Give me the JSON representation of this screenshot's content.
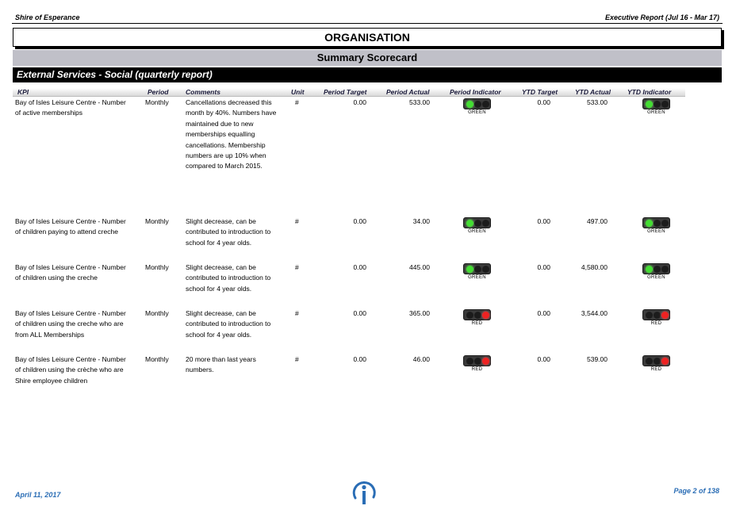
{
  "header": {
    "org_name": "Shire of Esperance",
    "report_title": "Executive Report (Jul 16 - Mar 17)"
  },
  "titles": {
    "organisation": "ORGANISATION",
    "summary": "Summary Scorecard",
    "section": "External Services - Social (quarterly report)"
  },
  "columns": {
    "kpi": "KPI",
    "period": "Period",
    "comments": "Comments",
    "unit": "Unit",
    "period_target": "Period Target",
    "period_actual": "Period Actual",
    "period_indicator": "Period Indicator",
    "ytd_target": "YTD Target",
    "ytd_actual": "YTD Actual",
    "ytd_indicator": "YTD Indicator"
  },
  "rows": [
    {
      "kpi": "Bay of Isles Leisure Centre - Number of active memberships",
      "period": "Monthly",
      "comment": "Cancellations decreased this month by 40%. Numbers have maintained due to new memberships equalling cancellations. Membership numbers are up 10% when compared to March 2015.",
      "unit": "#",
      "period_target": "0.00",
      "period_actual": "533.00",
      "period_indicator": "GREEN",
      "ytd_target": "0.00",
      "ytd_actual": "533.00",
      "ytd_indicator": "GREEN"
    },
    {
      "kpi": "Bay of Isles Leisure Centre - Number of children paying to attend creche",
      "period": "Monthly",
      "comment": "Slight decrease, can be contributed to introduction to school for 4 year olds.",
      "unit": "#",
      "period_target": "0.00",
      "period_actual": "34.00",
      "period_indicator": "GREEN",
      "ytd_target": "0.00",
      "ytd_actual": "497.00",
      "ytd_indicator": "GREEN"
    },
    {
      "kpi": "Bay of Isles Leisure Centre - Number of children using the creche",
      "period": "Monthly",
      "comment": "Slight decrease, can be contributed to introduction to school for 4 year olds.",
      "unit": "#",
      "period_target": "0.00",
      "period_actual": "445.00",
      "period_indicator": "GREEN",
      "ytd_target": "0.00",
      "ytd_actual": "4,580.00",
      "ytd_indicator": "GREEN"
    },
    {
      "kpi": "Bay of Isles Leisure Centre - Number of children using the creche who are from ALL Memberships",
      "period": "Monthly",
      "comment": "Slight decrease, can be contributed to introduction to school for 4 year olds.",
      "unit": "#",
      "period_target": "0.00",
      "period_actual": "365.00",
      "period_indicator": "RED",
      "ytd_target": "0.00",
      "ytd_actual": "3,544.00",
      "ytd_indicator": "RED"
    },
    {
      "kpi": "Bay of Isles Leisure Centre - Number of children using the crèche who are Shire employee children",
      "period": "Monthly",
      "comment": "20 more than last years numbers.",
      "unit": "#",
      "period_target": "0.00",
      "period_actual": "46.00",
      "period_indicator": "RED",
      "ytd_target": "0.00",
      "ytd_actual": "539.00",
      "ytd_indicator": "RED"
    }
  ],
  "footer": {
    "date": "April 11, 2017",
    "page": "Page 2 of 138"
  },
  "colors": {
    "footer_text": "#2a6db5",
    "summary_bar": "#c0c0c8",
    "section_bar": "#000000",
    "green_light": "#44dd33",
    "red_light": "#ee2222"
  },
  "icons": {
    "logo": "info-i-logo",
    "indicator": "traffic-light-icon"
  }
}
